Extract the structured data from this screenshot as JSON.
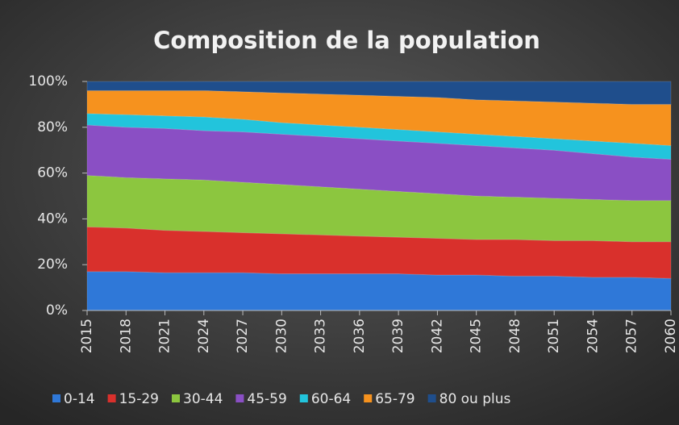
{
  "chart_data": {
    "type": "stacked_area",
    "title": "Composition de la population",
    "x": [
      2015,
      2018,
      2021,
      2024,
      2027,
      2030,
      2033,
      2036,
      2039,
      2042,
      2045,
      2048,
      2051,
      2054,
      2057,
      2060
    ],
    "xlim": [
      2015,
      2060
    ],
    "xticks": [
      2015,
      2018,
      2021,
      2024,
      2027,
      2030,
      2033,
      2036,
      2039,
      2042,
      2045,
      2048,
      2051,
      2054,
      2057,
      2060
    ],
    "ylim": [
      0,
      100
    ],
    "yticks": [
      {
        "value": 0,
        "label": "0%"
      },
      {
        "value": 20,
        "label": "20%"
      },
      {
        "value": 40,
        "label": "40%"
      },
      {
        "value": 60,
        "label": "60%"
      },
      {
        "value": 80,
        "label": "80%"
      },
      {
        "value": 100,
        "label": "100%"
      }
    ],
    "legend": "bottom",
    "series": [
      {
        "name": "0-14",
        "color": "#2f78d8",
        "values": [
          17,
          17,
          16.5,
          16.5,
          16.5,
          16,
          16,
          16,
          16,
          15.5,
          15.5,
          15,
          15,
          14.5,
          14.5,
          14
        ]
      },
      {
        "name": "15-29",
        "color": "#d9302c",
        "values": [
          19.5,
          19,
          18.5,
          18,
          17.5,
          17.5,
          17,
          16.5,
          16,
          16,
          15.5,
          16,
          15.5,
          16,
          15.5,
          16
        ]
      },
      {
        "name": "30-44",
        "color": "#8cc63f",
        "values": [
          22.5,
          22,
          22.5,
          22.5,
          22,
          21.5,
          21,
          20.5,
          20,
          19.5,
          19,
          18.5,
          18.5,
          18,
          18,
          18
        ]
      },
      {
        "name": "45-59",
        "color": "#8a4fc4",
        "values": [
          22,
          22,
          22,
          21.5,
          22,
          22,
          22,
          22,
          22,
          22,
          22,
          21.5,
          21,
          20,
          19,
          18
        ]
      },
      {
        "name": "60-64",
        "color": "#22c4dc",
        "values": [
          5,
          5.5,
          5.5,
          6,
          5.5,
          5,
          5,
          5,
          5,
          5,
          5,
          5,
          5,
          5.5,
          6,
          6
        ]
      },
      {
        "name": "65-79",
        "color": "#f6921e",
        "values": [
          10,
          10.5,
          11,
          11.5,
          12,
          13,
          13.5,
          14,
          14.5,
          15,
          15,
          15.5,
          16,
          16.5,
          17,
          18
        ]
      },
      {
        "name": "80 ou plus",
        "color": "#1f4e8c",
        "values": [
          4,
          4,
          4,
          4,
          4.5,
          5,
          5.5,
          6,
          6.5,
          7,
          8,
          8.5,
          9,
          9.5,
          10,
          10
        ]
      }
    ]
  }
}
